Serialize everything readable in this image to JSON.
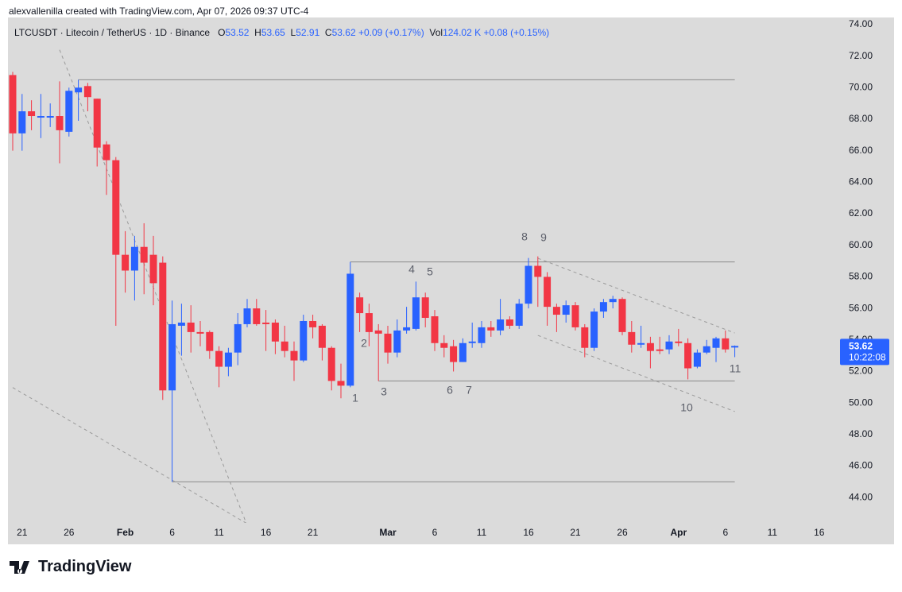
{
  "header": {
    "caption": "alexvallenilla created with TradingView.com, Apr 07, 2026 09:37 UTC-4"
  },
  "legend": {
    "symbol": "LTCUSDT · Litecoin / TetherUS · 1D · Binance",
    "open_label": "O",
    "high_label": "H",
    "low_label": "L",
    "close_label": "C",
    "change": "+0.09 (+0.17%)",
    "volume_label": "Vol",
    "volume": "124.02 K",
    "volume_change": "+0.08 (+0.15%)"
  },
  "countdown": "10:22:08",
  "footer": {
    "brand": "TradingView"
  },
  "chart_data": {
    "type": "candlestick",
    "up_color": "#2962ff",
    "down_color": "#f23645",
    "x": [
      "2026-01-20",
      "2026-01-21",
      "2026-01-22",
      "2026-01-23",
      "2026-01-24",
      "2026-01-25",
      "2026-01-26",
      "2026-01-27",
      "2026-01-28",
      "2026-01-29",
      "2026-01-30",
      "2026-01-31",
      "2026-02-01",
      "2026-02-02",
      "2026-02-03",
      "2026-02-04",
      "2026-02-05",
      "2026-02-06",
      "2026-02-07",
      "2026-02-08",
      "2026-02-09",
      "2026-02-10",
      "2026-02-11",
      "2026-02-12",
      "2026-02-13",
      "2026-02-14",
      "2026-02-15",
      "2026-02-16",
      "2026-02-17",
      "2026-02-18",
      "2026-02-19",
      "2026-02-20",
      "2026-02-21",
      "2026-02-22",
      "2026-02-23",
      "2026-02-24",
      "2026-02-25",
      "2026-02-26",
      "2026-02-27",
      "2026-02-28",
      "2026-03-01",
      "2026-03-02",
      "2026-03-03",
      "2026-03-04",
      "2026-03-05",
      "2026-03-06",
      "2026-03-07",
      "2026-03-08",
      "2026-03-09",
      "2026-03-10",
      "2026-03-11",
      "2026-03-12",
      "2026-03-13",
      "2026-03-14",
      "2026-03-15",
      "2026-03-16",
      "2026-03-17",
      "2026-03-18",
      "2026-03-19",
      "2026-03-20",
      "2026-03-21",
      "2026-03-22",
      "2026-03-23",
      "2026-03-24",
      "2026-03-25",
      "2026-03-26",
      "2026-03-27",
      "2026-03-28",
      "2026-03-29",
      "2026-03-30",
      "2026-03-31",
      "2026-04-01",
      "2026-04-02",
      "2026-04-03",
      "2026-04-04",
      "2026-04-05",
      "2026-04-06",
      "2026-04-07"
    ],
    "open": [
      70.8,
      67.1,
      68.5,
      68.1,
      68.1,
      68.2,
      67.2,
      69.7,
      70.1,
      69.3,
      66.4,
      65.4,
      59.4,
      58.4,
      59.9,
      59.4,
      58.9,
      50.8,
      54.9,
      55.1,
      54.5,
      54.5,
      53.3,
      52.3,
      53.2,
      55.0,
      56.0,
      55.1,
      55.1,
      53.9,
      53.3,
      52.7,
      55.2,
      54.9,
      53.5,
      51.4,
      51.1,
      56.7,
      55.7,
      54.6,
      54.4,
      53.2,
      54.6,
      54.7,
      56.7,
      55.5,
      53.8,
      53.6,
      52.6,
      53.8,
      53.8,
      54.8,
      54.6,
      55.3,
      54.9,
      56.3,
      58.7,
      58.0,
      56.1,
      55.6,
      56.2,
      54.8,
      53.5,
      55.8,
      56.4,
      56.6,
      54.5,
      53.7,
      53.8,
      53.4,
      53.4,
      53.9,
      53.8,
      52.3,
      53.2,
      53.5,
      54.1,
      53.52
    ],
    "high": [
      71.0,
      69.6,
      69.2,
      69.6,
      69.0,
      70.4,
      70.0,
      70.5,
      70.3,
      69.3,
      66.6,
      65.6,
      60.9,
      60.6,
      61.4,
      60.6,
      59.3,
      56.5,
      56.3,
      56.2,
      55.2,
      54.6,
      53.6,
      53.5,
      55.7,
      56.6,
      56.6,
      55.9,
      55.3,
      54.9,
      53.9,
      55.6,
      55.6,
      55.0,
      53.6,
      52.5,
      58.95,
      57.0,
      56.3,
      55.0,
      54.9,
      55.3,
      56.1,
      57.7,
      57.0,
      55.9,
      54.3,
      54.0,
      54.1,
      55.1,
      55.2,
      55.2,
      56.6,
      55.5,
      56.6,
      59.2,
      59.3,
      58.3,
      56.3,
      56.5,
      56.4,
      55.0,
      56.0,
      56.6,
      56.8,
      56.7,
      55.2,
      54.9,
      54.2,
      54.2,
      54.3,
      54.7,
      54.1,
      53.4,
      54.0,
      54.2,
      54.6,
      53.65
    ],
    "low": [
      66.0,
      66.0,
      67.3,
      66.8,
      67.5,
      65.2,
      66.9,
      67.9,
      68.5,
      65.0,
      63.2,
      54.9,
      57.0,
      56.5,
      56.9,
      56.2,
      50.2,
      45.0,
      53.0,
      53.2,
      53.6,
      52.8,
      51.0,
      51.7,
      52.4,
      54.8,
      54.9,
      53.3,
      53.1,
      52.9,
      51.4,
      52.6,
      54.1,
      52.7,
      50.8,
      50.3,
      51.0,
      54.5,
      53.6,
      51.4,
      52.5,
      52.9,
      54.4,
      54.6,
      54.8,
      53.3,
      52.9,
      52.0,
      52.6,
      53.5,
      53.5,
      54.2,
      54.3,
      54.7,
      54.7,
      56.0,
      56.1,
      54.9,
      54.5,
      55.1,
      54.6,
      52.9,
      53.3,
      55.4,
      56.0,
      54.3,
      53.2,
      53.5,
      52.2,
      53.1,
      53.1,
      53.6,
      51.5,
      52.2,
      53.1,
      52.6,
      53.2,
      52.91
    ],
    "close": [
      67.1,
      68.5,
      68.2,
      68.2,
      68.2,
      67.3,
      69.8,
      70.0,
      69.4,
      66.2,
      65.4,
      59.4,
      58.4,
      59.9,
      58.9,
      57.6,
      50.8,
      55.0,
      55.1,
      54.5,
      54.4,
      53.3,
      52.3,
      53.2,
      55.0,
      56.0,
      55.0,
      55.0,
      53.9,
      53.3,
      52.7,
      55.2,
      54.8,
      53.5,
      51.4,
      51.1,
      58.2,
      55.7,
      54.5,
      54.4,
      53.2,
      54.6,
      54.8,
      56.7,
      55.4,
      53.8,
      53.5,
      52.6,
      53.8,
      53.9,
      54.8,
      54.6,
      55.3,
      54.9,
      56.3,
      58.7,
      58.0,
      56.1,
      55.6,
      56.2,
      54.8,
      53.5,
      55.8,
      56.4,
      56.6,
      54.5,
      53.7,
      53.8,
      53.3,
      53.3,
      53.9,
      53.8,
      52.2,
      53.2,
      53.6,
      54.1,
      53.4,
      53.62
    ],
    "xlim": [
      "2026-01-19",
      "2026-04-17"
    ],
    "ylim": [
      42.5,
      74.5
    ],
    "xticks": [
      {
        "value": "2026-01-21",
        "label": "21"
      },
      {
        "value": "2026-01-26",
        "label": "26"
      },
      {
        "value": "2026-02-01",
        "label": "Feb"
      },
      {
        "value": "2026-02-06",
        "label": "6"
      },
      {
        "value": "2026-02-11",
        "label": "11"
      },
      {
        "value": "2026-02-16",
        "label": "16"
      },
      {
        "value": "2026-02-21",
        "label": "21"
      },
      {
        "value": "2026-03-01",
        "label": "Mar"
      },
      {
        "value": "2026-03-06",
        "label": "6"
      },
      {
        "value": "2026-03-11",
        "label": "11"
      },
      {
        "value": "2026-03-16",
        "label": "16"
      },
      {
        "value": "2026-03-21",
        "label": "21"
      },
      {
        "value": "2026-03-26",
        "label": "26"
      },
      {
        "value": "2026-04-01",
        "label": "Apr"
      },
      {
        "value": "2026-04-06",
        "label": "6"
      },
      {
        "value": "2026-04-11",
        "label": "11"
      },
      {
        "value": "2026-04-16",
        "label": "16"
      }
    ],
    "yticks": [
      {
        "value": 44,
        "label": "44.00"
      },
      {
        "value": 46,
        "label": "46.00"
      },
      {
        "value": 48,
        "label": "48.00"
      },
      {
        "value": 50,
        "label": "50.00"
      },
      {
        "value": 52,
        "label": "52.00"
      },
      {
        "value": 54,
        "label": "54.00"
      },
      {
        "value": 56,
        "label": "56.00"
      },
      {
        "value": 58,
        "label": "58.00"
      },
      {
        "value": 60,
        "label": "60.00"
      },
      {
        "value": 62,
        "label": "62.00"
      },
      {
        "value": 64,
        "label": "64.00"
      },
      {
        "value": 66,
        "label": "66.00"
      },
      {
        "value": 68,
        "label": "68.00"
      },
      {
        "value": 70,
        "label": "70.00"
      },
      {
        "value": 72,
        "label": "72.00"
      },
      {
        "value": 74,
        "label": "74.00"
      }
    ],
    "horizontal_lines": [
      {
        "start": "2026-01-27",
        "end": "2026-04-07",
        "value": 70.5
      },
      {
        "start": "2026-02-25",
        "end": "2026-04-07",
        "value": 58.95
      },
      {
        "start": "2026-02-28",
        "end": "2026-04-07",
        "value": 51.4
      },
      {
        "start": "2026-02-06",
        "end": "2026-04-07",
        "value": 45.0
      }
    ],
    "trend_lines": [
      {
        "x": [
          "2026-01-25",
          "2026-02-14"
        ],
        "y": [
          72.4,
          42.24
        ]
      },
      {
        "x": [
          "2026-01-20",
          "2026-02-14"
        ],
        "y": [
          50.98,
          42.35
        ]
      },
      {
        "x": [
          "2026-03-17",
          "2026-04-07"
        ],
        "y": [
          59.18,
          54.44
        ]
      },
      {
        "x": [
          "2026-03-17",
          "2026-04-07"
        ],
        "y": [
          54.29,
          49.46
        ]
      }
    ],
    "annotations": [
      "1",
      "2",
      "3",
      "4",
      "5",
      "6",
      "7",
      "8",
      "9",
      "10",
      "11"
    ]
  }
}
